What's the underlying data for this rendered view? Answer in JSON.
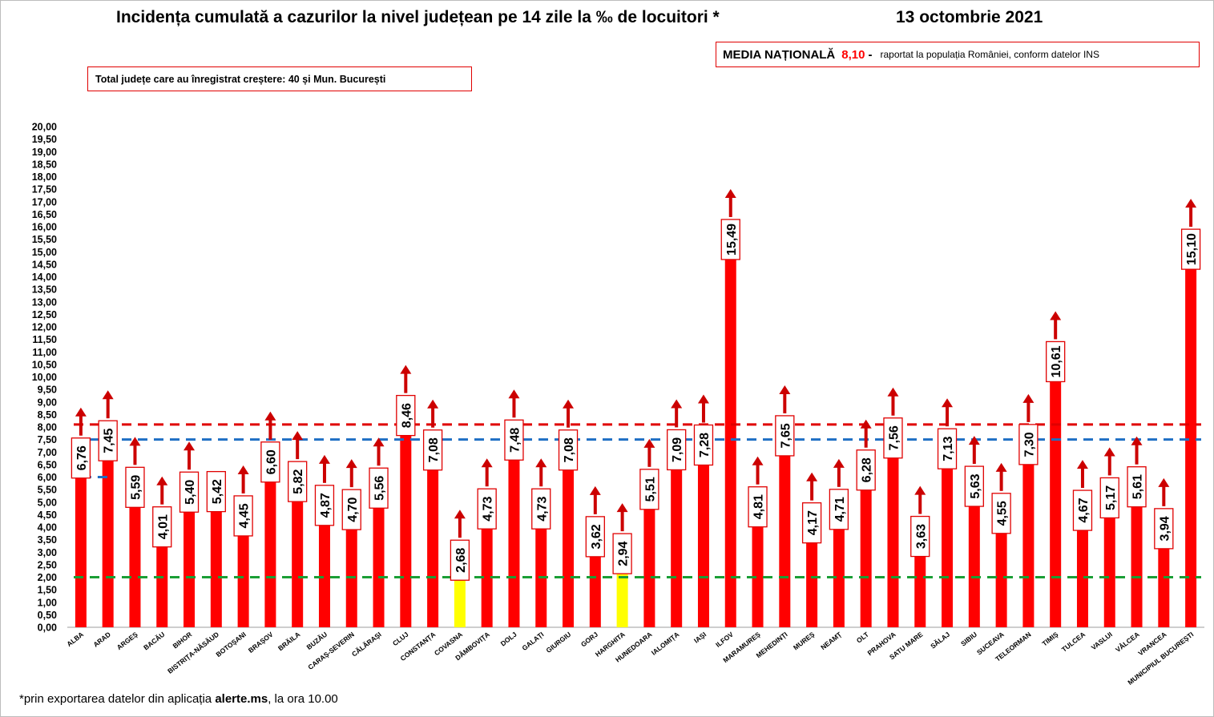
{
  "title": "Incidența cumulată a cazurilor la nivel județean pe 14 zile la ‰ de locuitori *",
  "date": "13 octombrie 2021",
  "media": {
    "label": "MEDIA NAȚIONALĂ",
    "value": "8,10",
    "dash": "-",
    "note": "raportat la populația României, conform datelor INS"
  },
  "total_box": "Total județe care au înregistrat creștere:  40 și Mun. București",
  "footnote": {
    "prefix": "*prin exportarea datelor din aplicația",
    "app": "alerte.ms",
    "suffix": ", la ora 10.00"
  },
  "colors": {
    "bar": "#ff0000",
    "bar_highlight": "#ffff00",
    "arrow": "#cc0000",
    "line_national": "#e00000",
    "line_blue": "#1f6fc4",
    "line_green": "#1a9e35",
    "label_border": "#e00000"
  },
  "chart_data": {
    "type": "bar",
    "categories": [
      "ALBA",
      "ARAD",
      "ARGEȘ",
      "BACĂU",
      "BIHOR",
      "BISTRIȚA-NĂSĂUD",
      "BOTOȘANI",
      "BRAȘOV",
      "BRĂILA",
      "BUZĂU",
      "CARAȘ-SEVERIN",
      "CĂLĂRAȘI",
      "CLUJ",
      "CONSTANȚA",
      "COVASNA",
      "DÂMBOVIȚA",
      "DOLJ",
      "GALAȚI",
      "GIURGIU",
      "GORJ",
      "HARGHITA",
      "HUNEDOARA",
      "IALOMIȚA",
      "IAȘI",
      "ILFOV",
      "MARAMUREȘ",
      "MEHEDINȚI",
      "MUREȘ",
      "NEAMȚ",
      "OLT",
      "PRAHOVA",
      "SATU MARE",
      "SĂLAJ",
      "SIBIU",
      "SUCEAVA",
      "TELEORMAN",
      "TIMIȘ",
      "TULCEA",
      "VASLUI",
      "VÂLCEA",
      "VRANCEA",
      "MUNICIPIUL BUCUREȘTI"
    ],
    "values": [
      6.76,
      7.45,
      5.59,
      4.01,
      5.4,
      5.42,
      4.45,
      6.6,
      5.82,
      4.87,
      4.7,
      5.56,
      8.46,
      7.08,
      2.68,
      4.73,
      7.48,
      4.73,
      7.08,
      3.62,
      2.94,
      5.51,
      7.09,
      7.28,
      15.49,
      4.81,
      7.65,
      4.17,
      4.71,
      6.28,
      7.56,
      3.63,
      7.13,
      5.63,
      4.55,
      7.3,
      10.61,
      4.67,
      5.17,
      5.61,
      3.94,
      15.1
    ],
    "labels": [
      "6,76",
      "7,45",
      "5,59",
      "4,01",
      "5,40",
      "5,42",
      "4,45",
      "6,60",
      "5,82",
      "4,87",
      "4,70",
      "5,56",
      "8,46",
      "7,08",
      "2,68",
      "4,73",
      "7,48",
      "4,73",
      "7,08",
      "3,62",
      "2,94",
      "5,51",
      "7,09",
      "7,28",
      "15,49",
      "4,81",
      "7,65",
      "4,17",
      "4,71",
      "6,28",
      "7,56",
      "3,63",
      "7,13",
      "5,63",
      "4,55",
      "7,30",
      "10,61",
      "4,67",
      "5,17",
      "5,61",
      "3,94",
      "15,10"
    ],
    "increase": [
      true,
      true,
      true,
      true,
      true,
      false,
      true,
      true,
      true,
      true,
      true,
      true,
      true,
      true,
      true,
      true,
      true,
      true,
      true,
      true,
      true,
      true,
      true,
      true,
      true,
      true,
      true,
      true,
      true,
      true,
      true,
      true,
      true,
      true,
      true,
      true,
      true,
      true,
      true,
      true,
      true,
      true
    ],
    "highlight": [
      "COVASNA",
      "HARGHITA"
    ],
    "ylim": [
      0,
      20
    ],
    "ytick_step": 0.5,
    "yticks": [
      "0,00",
      "0,50",
      "1,00",
      "1,50",
      "2,00",
      "2,50",
      "3,00",
      "3,50",
      "4,00",
      "4,50",
      "5,00",
      "5,50",
      "6,00",
      "6,50",
      "7,00",
      "7,50",
      "8,00",
      "8,50",
      "9,00",
      "9,50",
      "10,00",
      "10,50",
      "11,00",
      "11,50",
      "12,00",
      "12,50",
      "13,00",
      "13,50",
      "14,00",
      "14,50",
      "15,00",
      "15,50",
      "16,00",
      "16,50",
      "17,00",
      "17,50",
      "18,00",
      "18,50",
      "19,00",
      "19,50",
      "20,00"
    ],
    "reference_lines": [
      {
        "value": 8.1,
        "style": "dashed",
        "color": "red"
      },
      {
        "value": 7.5,
        "style": "dashed",
        "color": "blue"
      },
      {
        "value": 2.0,
        "style": "dashed",
        "color": "green"
      }
    ],
    "extra_marker": {
      "category": "ALBA",
      "value": 6.0,
      "color": "blue"
    }
  }
}
